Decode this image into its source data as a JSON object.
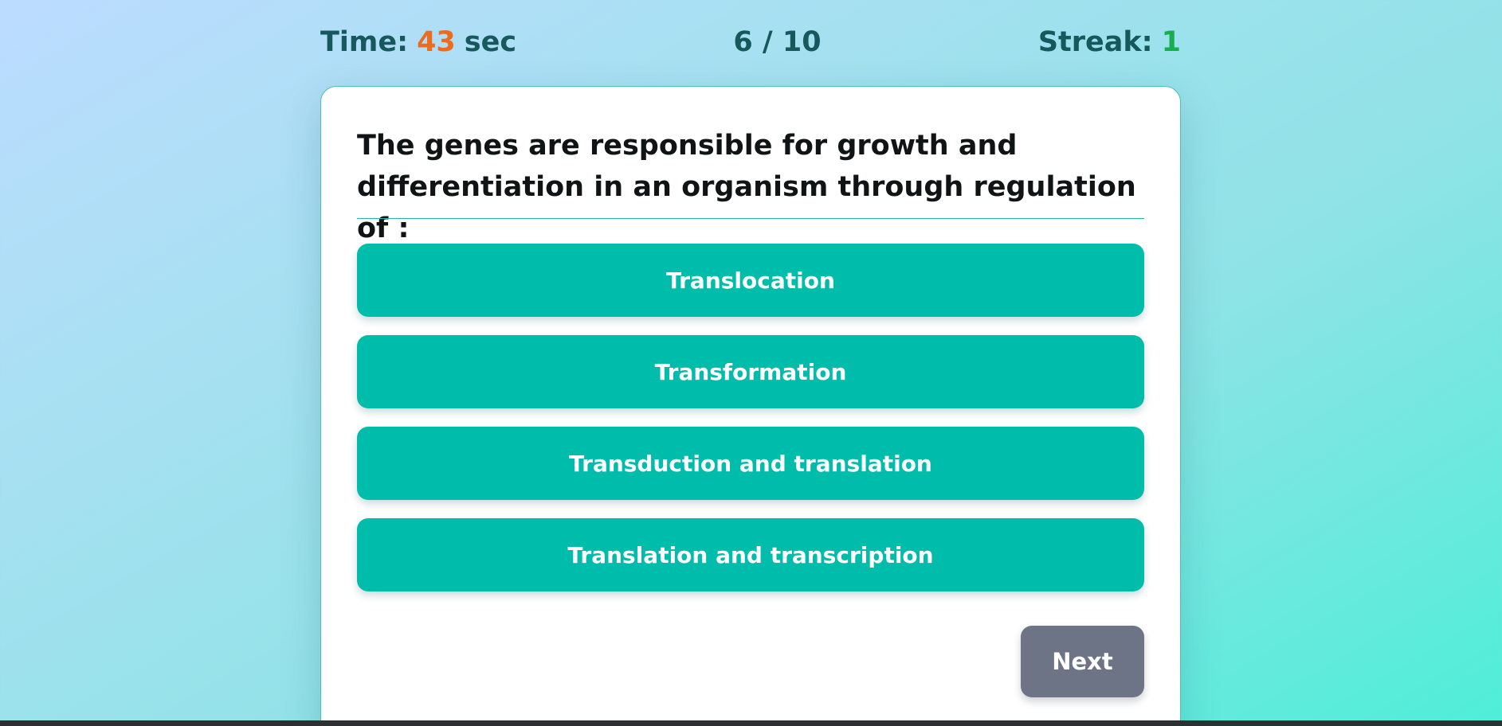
{
  "status": {
    "time_label": "Time:",
    "time_value": "43",
    "time_unit": "sec",
    "progress": "6 / 10",
    "streak_label": "Streak:",
    "streak_value": "1"
  },
  "question": {
    "text": "The genes are responsible for growth and differentiation in an organism through regulation of :"
  },
  "options": [
    {
      "label": "Translocation"
    },
    {
      "label": "Transformation"
    },
    {
      "label": "Transduction and translation"
    },
    {
      "label": "Translation and transcription"
    }
  ],
  "controls": {
    "next_label": "Next"
  },
  "colors": {
    "accent": "#00bcaa",
    "timer_value": "#f06a1c",
    "streak_value": "#1aad4f",
    "next_button": "#6c7485"
  }
}
